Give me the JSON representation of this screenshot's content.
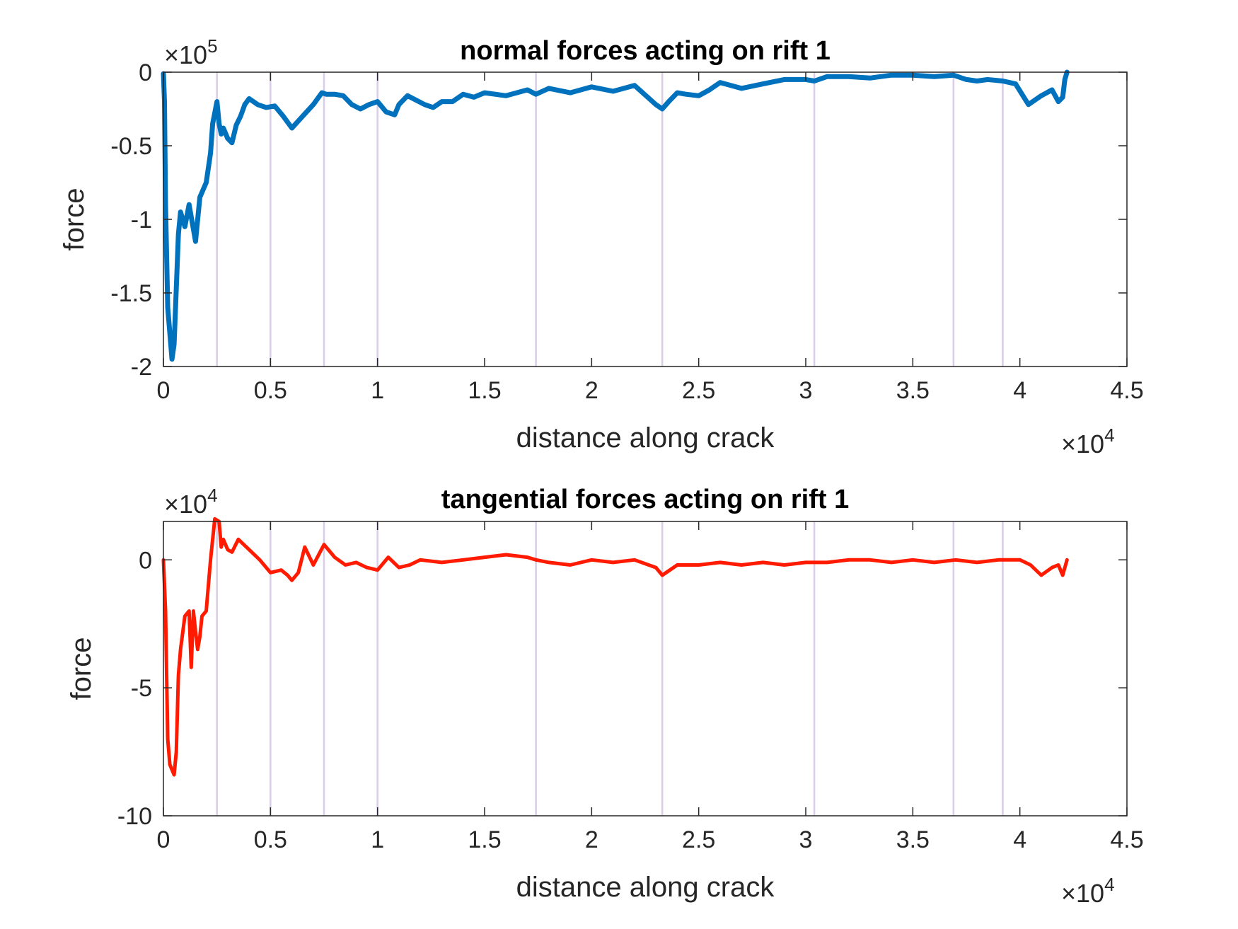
{
  "chart_data": [
    {
      "type": "line",
      "title": "normal forces acting on rift 1",
      "xlabel": "distance along crack",
      "ylabel": "force",
      "x_multiplier": "×10",
      "x_exponent": "4",
      "y_multiplier": "×10",
      "y_exponent": "5",
      "xlim": [
        0,
        4.5
      ],
      "ylim": [
        -2,
        0
      ],
      "xticks": [
        "0",
        "0.5",
        "1",
        "1.5",
        "2",
        "2.5",
        "3",
        "3.5",
        "4",
        "4.5"
      ],
      "yticks": [
        "0",
        "-0.5",
        "-1",
        "-1.5",
        "-2"
      ],
      "grid": false,
      "vertical_markers": [
        0.25,
        0.5,
        0.75,
        1.0,
        1.74,
        2.33,
        3.04,
        3.69,
        3.92
      ],
      "series": [
        {
          "color": "#0072BD",
          "x": [
            0,
            0.005,
            0.01,
            0.02,
            0.04,
            0.05,
            0.07,
            0.08,
            0.1,
            0.12,
            0.15,
            0.17,
            0.2,
            0.22,
            0.23,
            0.25,
            0.26,
            0.27,
            0.28,
            0.3,
            0.32,
            0.34,
            0.36,
            0.38,
            0.4,
            0.44,
            0.48,
            0.52,
            0.56,
            0.6,
            0.65,
            0.7,
            0.74,
            0.76,
            0.8,
            0.84,
            0.88,
            0.92,
            0.96,
            1.0,
            1.04,
            1.08,
            1.1,
            1.14,
            1.18,
            1.22,
            1.26,
            1.3,
            1.35,
            1.4,
            1.45,
            1.5,
            1.6,
            1.7,
            1.74,
            1.8,
            1.9,
            2.0,
            2.1,
            2.2,
            2.3,
            2.33,
            2.36,
            2.4,
            2.44,
            2.5,
            2.55,
            2.6,
            2.7,
            2.8,
            2.9,
            3.0,
            3.04,
            3.1,
            3.2,
            3.3,
            3.4,
            3.5,
            3.6,
            3.69,
            3.75,
            3.8,
            3.85,
            3.92,
            3.98,
            4.04,
            4.1,
            4.15,
            4.18,
            4.2,
            4.21,
            4.22
          ],
          "y": [
            -0.01,
            -0.2,
            -0.9,
            -1.6,
            -1.95,
            -1.85,
            -1.1,
            -0.95,
            -1.05,
            -0.9,
            -1.15,
            -0.85,
            -0.75,
            -0.55,
            -0.35,
            -0.2,
            -0.35,
            -0.42,
            -0.38,
            -0.45,
            -0.48,
            -0.36,
            -0.3,
            -0.22,
            -0.18,
            -0.22,
            -0.24,
            -0.23,
            -0.3,
            -0.38,
            -0.3,
            -0.22,
            -0.14,
            -0.15,
            -0.15,
            -0.16,
            -0.22,
            -0.25,
            -0.22,
            -0.2,
            -0.27,
            -0.29,
            -0.22,
            -0.16,
            -0.19,
            -0.22,
            -0.24,
            -0.2,
            -0.2,
            -0.15,
            -0.17,
            -0.14,
            -0.16,
            -0.12,
            -0.15,
            -0.11,
            -0.14,
            -0.1,
            -0.13,
            -0.09,
            -0.22,
            -0.25,
            -0.2,
            -0.14,
            -0.15,
            -0.16,
            -0.12,
            -0.07,
            -0.11,
            -0.08,
            -0.05,
            -0.05,
            -0.06,
            -0.03,
            -0.03,
            -0.04,
            -0.02,
            -0.02,
            -0.03,
            -0.02,
            -0.05,
            -0.06,
            -0.05,
            -0.06,
            -0.08,
            -0.22,
            -0.16,
            -0.12,
            -0.2,
            -0.17,
            -0.05,
            0
          ]
        }
      ]
    },
    {
      "type": "line",
      "title": "tangential forces acting on rift 1",
      "xlabel": "distance along crack",
      "ylabel": "force",
      "x_multiplier": "×10",
      "x_exponent": "4",
      "y_multiplier": "×10",
      "y_exponent": "4",
      "xlim": [
        0,
        4.5
      ],
      "ylim": [
        -10,
        1.5
      ],
      "xticks": [
        "0",
        "0.5",
        "1",
        "1.5",
        "2",
        "2.5",
        "3",
        "3.5",
        "4",
        "4.5"
      ],
      "yticks": [
        "0",
        "-5",
        "-10"
      ],
      "grid": false,
      "vertical_markers": [
        0.25,
        0.5,
        0.75,
        1.0,
        1.74,
        2.33,
        3.04,
        3.69,
        3.92
      ],
      "series": [
        {
          "color": "#FF1A00",
          "x": [
            0,
            0.01,
            0.02,
            0.03,
            0.05,
            0.06,
            0.07,
            0.08,
            0.1,
            0.12,
            0.13,
            0.14,
            0.15,
            0.16,
            0.17,
            0.18,
            0.2,
            0.22,
            0.24,
            0.26,
            0.27,
            0.28,
            0.3,
            0.32,
            0.35,
            0.4,
            0.45,
            0.5,
            0.55,
            0.58,
            0.6,
            0.63,
            0.66,
            0.7,
            0.75,
            0.8,
            0.85,
            0.9,
            0.95,
            1.0,
            1.05,
            1.1,
            1.15,
            1.2,
            1.3,
            1.4,
            1.5,
            1.6,
            1.7,
            1.74,
            1.8,
            1.9,
            2.0,
            2.1,
            2.2,
            2.3,
            2.33,
            2.4,
            2.5,
            2.6,
            2.7,
            2.8,
            2.9,
            3.0,
            3.1,
            3.2,
            3.3,
            3.4,
            3.5,
            3.6,
            3.7,
            3.8,
            3.9,
            4.0,
            4.05,
            4.1,
            4.15,
            4.18,
            4.2,
            4.22
          ],
          "y": [
            0,
            -2,
            -7,
            -8,
            -8.4,
            -7.5,
            -4.5,
            -3.5,
            -2.2,
            -2.0,
            -4.2,
            -2.0,
            -2.8,
            -3.5,
            -3.0,
            -2.2,
            -2.0,
            0,
            1.6,
            1.5,
            0.5,
            0.8,
            0.4,
            0.3,
            0.8,
            0.4,
            0,
            -0.5,
            -0.4,
            -0.6,
            -0.8,
            -0.5,
            0.5,
            -0.2,
            0.6,
            0.1,
            -0.2,
            -0.1,
            -0.3,
            -0.4,
            0.1,
            -0.3,
            -0.2,
            0,
            -0.1,
            0,
            0.1,
            0.2,
            0.1,
            0,
            -0.1,
            -0.2,
            0,
            -0.1,
            0,
            -0.3,
            -0.6,
            -0.2,
            -0.2,
            -0.1,
            -0.2,
            -0.1,
            -0.2,
            -0.1,
            -0.1,
            0,
            0,
            -0.1,
            0,
            -0.1,
            0,
            -0.1,
            0,
            0,
            -0.2,
            -0.6,
            -0.3,
            -0.2,
            -0.6,
            0
          ]
        }
      ]
    }
  ]
}
